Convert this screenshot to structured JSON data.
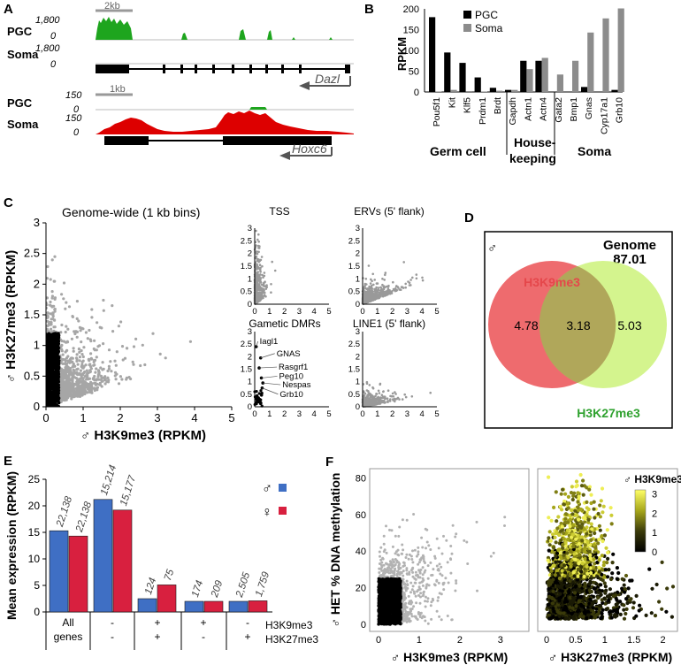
{
  "panel_labels": {
    "a": "A",
    "b": "B",
    "c": "C",
    "d": "D",
    "e": "E",
    "f": "F"
  },
  "panel_a": {
    "dazl": {
      "scale_bar": "2kb",
      "rows": [
        {
          "label": "PGC",
          "max": "1,800",
          "min": "0"
        },
        {
          "label": "Soma",
          "max": "1,800",
          "min": "0"
        }
      ],
      "gene": "Dazl",
      "track_color": "#1ea51e"
    },
    "hoxc6": {
      "scale_bar": "1kb",
      "rows": [
        {
          "label": "PGC",
          "max": "150",
          "min": "0"
        },
        {
          "label": "Soma",
          "max": "150",
          "min": "0"
        }
      ],
      "gene": "Hoxc6",
      "track_color": "#dd0000"
    }
  },
  "chart_data": [
    {
      "id": "panel_b",
      "type": "bar",
      "ylabel": "RPKM",
      "ylim": [
        0,
        200
      ],
      "yticks": [
        "0",
        "50",
        "100",
        "150",
        "200"
      ],
      "categories": [
        "Pou5f1",
        "Kit",
        "Klf5",
        "Prdm1",
        "Brdt",
        "Gapdh",
        "Actn1",
        "Actn4",
        "Gata2",
        "Bmp1",
        "Gnas",
        "Cyp17a1",
        "Grb10"
      ],
      "series": [
        {
          "name": "PGC",
          "color": "#000000",
          "values": [
            180,
            95,
            70,
            35,
            10,
            5,
            75,
            75,
            1,
            1,
            12,
            1,
            5
          ]
        },
        {
          "name": "Soma",
          "color": "#8c8c8c",
          "values": [
            1,
            5,
            2,
            1,
            3,
            5,
            55,
            82,
            42,
            75,
            143,
            177,
            201
          ]
        }
      ],
      "groups": [
        {
          "label": "Germ cell"
        },
        {
          "label": "House-"
        },
        {
          "label": "keeping"
        },
        {
          "label": "Soma"
        }
      ]
    },
    {
      "id": "panel_c",
      "type": "scatter",
      "main_title": "Genome-wide (1 kb bins)",
      "xlabel": "♂ H3K9me3 (RPKM)",
      "ylabel": "♂ H3K27me3 (RPKM)",
      "xlim": [
        0,
        5
      ],
      "ylim": [
        0,
        3
      ],
      "xticks": [
        "0",
        "1",
        "2",
        "3",
        "4",
        "5"
      ],
      "yticks": [
        "0",
        "0.5",
        "1",
        "1.5",
        "2",
        "2.5",
        "3"
      ],
      "sub_titles": [
        "TSS",
        "ERVs (5' flank)",
        "Gametic DMRs",
        "LINE1 (5' flank)"
      ],
      "dmr_labels": [
        {
          "name": "Iagl1",
          "x": 0.1,
          "y": 2.4
        },
        {
          "name": "GNAS",
          "x": 0.4,
          "y": 1.95
        },
        {
          "name": "Rasgrf1",
          "x": 0.3,
          "y": 1.55
        },
        {
          "name": "Peg10",
          "x": 0.45,
          "y": 1.15
        },
        {
          "name": "Nespas",
          "x": 0.55,
          "y": 0.95
        },
        {
          "name": "Grb10",
          "x": 0.5,
          "y": 0.75
        }
      ]
    },
    {
      "id": "panel_e",
      "type": "bar",
      "ylabel": "Mean expression (RPKM)",
      "ylim": [
        0,
        25
      ],
      "yticks": [
        "0",
        "5",
        "10",
        "15",
        "20",
        "25"
      ],
      "categories": [
        "All genes",
        "-/-",
        "+/+",
        "+/-",
        "-/+"
      ],
      "series": [
        {
          "name": "♂",
          "color": "#3f6fc4",
          "values": [
            15.3,
            21.2,
            2.5,
            2.0,
            2.0
          ],
          "labels": [
            "22,138",
            "15,214",
            "124",
            "174",
            "2,505"
          ]
        },
        {
          "name": "♀",
          "color": "#d8203f",
          "values": [
            14.3,
            19.2,
            5.1,
            2.0,
            2.1
          ],
          "labels": [
            "22,138",
            "15,177",
            "75",
            "209",
            "1,759"
          ]
        }
      ],
      "row_labels": [
        "H3K9me3",
        "H3K27me3"
      ],
      "category_text": {
        "all_line1": "All",
        "all_line2": "genes",
        "c2_top": "-",
        "c2_bot": "-",
        "c3_top": "+",
        "c3_bot": "+",
        "c4_top": "+",
        "c4_bot": "-",
        "c5_top": "-",
        "c5_bot": "+"
      }
    },
    {
      "id": "panel_f",
      "type": "scatter",
      "ylabel": "♂ HET % DNA methylation",
      "left_xlabel": "♂ H3K9me3 (RPKM)",
      "right_xlabel": "♂ H3K27me3 (RPKM)",
      "ylim": [
        0,
        80
      ],
      "yticks": [
        "0",
        "20",
        "40",
        "60",
        "80"
      ],
      "left_xticks": [
        "0",
        "1",
        "2",
        "3"
      ],
      "right_xticks": [
        "0",
        "0.5",
        "1",
        "1.5",
        "2"
      ],
      "colorbar_title": "♂ H3K9me3",
      "colorbar_ticks": [
        "0",
        "1",
        "2",
        "3"
      ]
    }
  ],
  "panel_d": {
    "corner_symbol": "♂",
    "genome_label": "Genome",
    "genome_value": "87.01",
    "left_label": "H3K9me3",
    "right_label": "H3K27me3",
    "left_only": "4.78",
    "overlap": "3.18",
    "right_only": "5.03",
    "left_color": "#ee6b6e",
    "right_color": "#ccf27a"
  }
}
